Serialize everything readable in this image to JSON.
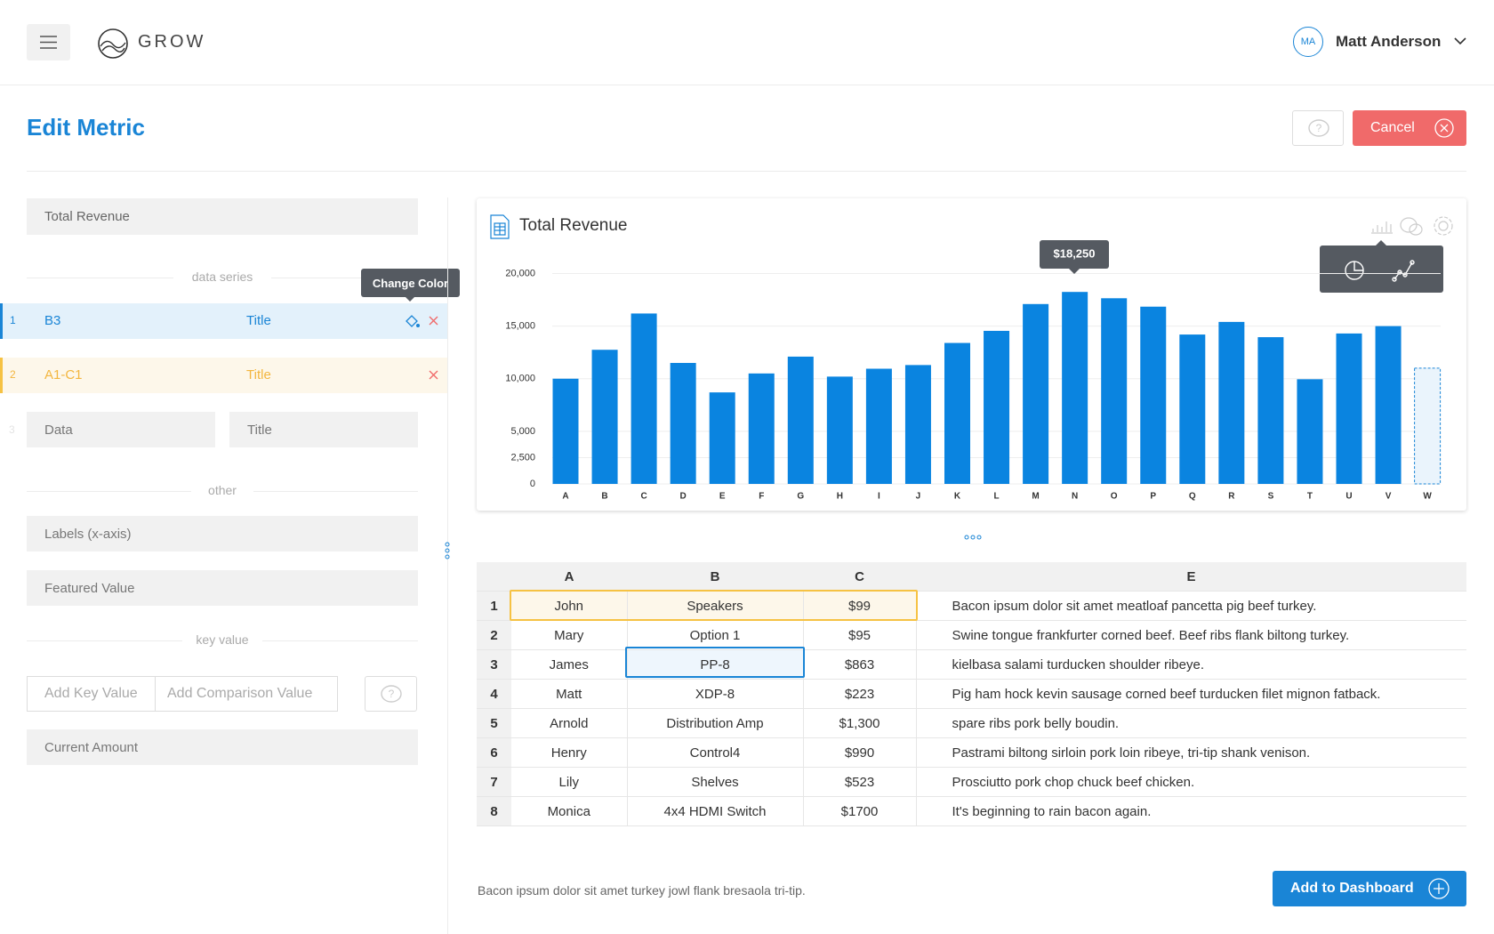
{
  "header": {
    "brand": "GROW",
    "user_initials": "MA",
    "user_name": "Matt Anderson"
  },
  "page": {
    "title": "Edit Metric",
    "cancel": "Cancel"
  },
  "form": {
    "metric_title": "Total Revenue",
    "data_series_label": "data series",
    "tooltip": "Change Color",
    "series": [
      {
        "index": "1",
        "range": "B3",
        "title": "Title"
      },
      {
        "index": "2",
        "range": "A1-C1",
        "title": "Title"
      },
      {
        "index": "3",
        "range": "Data",
        "title": "Title"
      }
    ],
    "other_label": "other",
    "labels_placeholder": "Labels (x-axis)",
    "featured_placeholder": "Featured Value",
    "key_value_label": "key value",
    "key_placeholder": "Add Key Value",
    "comparison_placeholder": "Add Comparison Value",
    "current_placeholder": "Current Amount"
  },
  "chart_data": {
    "type": "bar",
    "title": "Total Revenue",
    "categories": [
      "A",
      "B",
      "C",
      "D",
      "E",
      "F",
      "G",
      "H",
      "I",
      "J",
      "K",
      "L",
      "M",
      "N",
      "O",
      "P",
      "Q",
      "R",
      "S",
      "T",
      "U",
      "V",
      "W"
    ],
    "values": [
      10000,
      12750,
      16200,
      11500,
      8700,
      10500,
      12100,
      10200,
      10950,
      11300,
      13400,
      14550,
      17100,
      18250,
      17650,
      16850,
      14200,
      15400,
      13950,
      9950,
      14300,
      15000,
      null
    ],
    "color": "#0a84e0",
    "ylim": [
      0,
      20000
    ],
    "yticks": [
      0,
      {
        "value": 2500,
        "label": "2,500"
      },
      {
        "value": 5000,
        "label": "5,000"
      },
      {
        "value": 10000,
        "label": "10,000"
      },
      {
        "value": 15000,
        "label": "15,000"
      },
      {
        "value": 20000,
        "label": "20,000"
      }
    ],
    "grid": true,
    "tooltip": "$18,250"
  },
  "table": {
    "columns": [
      "A",
      "B",
      "C",
      "E"
    ],
    "rows": [
      [
        "1",
        "John",
        "Speakers",
        "$99",
        "Bacon ipsum dolor sit amet meatloaf pancetta pig beef turkey."
      ],
      [
        "2",
        "Mary",
        "Option 1",
        "$95",
        "Swine tongue frankfurter corned beef. Beef ribs flank biltong turkey."
      ],
      [
        "3",
        "James",
        "PP-8",
        "$863",
        "kielbasa salami turducken shoulder ribeye."
      ],
      [
        "4",
        "Matt",
        "XDP-8",
        "$223",
        "Pig ham hock kevin sausage corned beef turducken filet mignon fatback."
      ],
      [
        "5",
        "Arnold",
        "Distribution Amp",
        "$1,300",
        "spare ribs pork belly boudin."
      ],
      [
        "6",
        "Henry",
        "Control4",
        "$990",
        "Pastrami biltong sirloin pork loin ribeye, tri-tip shank venison."
      ],
      [
        "7",
        "Lily",
        "Shelves",
        "$523",
        "Prosciutto pork chop chuck beef chicken."
      ],
      [
        "8",
        "Monica",
        "4x4 HDMI Switch",
        "$1700",
        "It's beginning to rain bacon again."
      ]
    ]
  },
  "footer": {
    "note": "Bacon ipsum dolor sit amet turkey jowl flank bresaola tri-tip.",
    "add_button": "Add to Dashboard"
  }
}
